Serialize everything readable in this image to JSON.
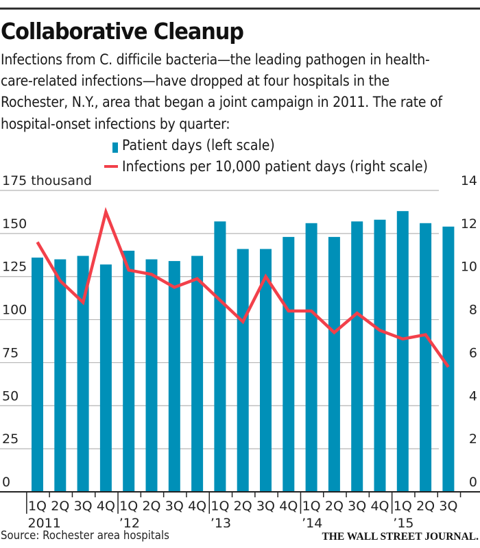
{
  "header": {
    "title": "Collaborative Cleanup",
    "subtitle": "Infections from C. difficile bacteria—the leading pathogen in health-care-related infections—have dropped at four hospitals in the Rochester, N.Y., area that began a joint campaign in 2011. The rate of hospital-onset infections by quarter:"
  },
  "footer": {
    "source": "Source: Rochester area hospitals",
    "brand": "THE WALL STREET JOURNAL."
  },
  "colors": {
    "bars": "#0090b8",
    "line": "#f2404a",
    "grid": "#b5b5b5",
    "axis": "#222222"
  },
  "chart_data": {
    "type": "bar",
    "title": "Collaborative Cleanup",
    "categories": [
      "1Q 2011",
      "2Q 2011",
      "3Q 2011",
      "4Q 2011",
      "1Q '12",
      "2Q '12",
      "3Q '12",
      "4Q '12",
      "1Q '13",
      "2Q '13",
      "3Q '13",
      "4Q '13",
      "1Q '14",
      "2Q '14",
      "3Q '14",
      "4Q '14",
      "1Q '15",
      "2Q '15",
      "3Q '15"
    ],
    "quarter_labels": [
      "1Q",
      "2Q",
      "3Q",
      "4Q",
      "1Q",
      "2Q",
      "3Q",
      "4Q",
      "1Q",
      "2Q",
      "3Q",
      "4Q",
      "1Q",
      "2Q",
      "3Q",
      "4Q",
      "1Q",
      "2Q",
      "3Q"
    ],
    "year_labels": [
      {
        "index": 0,
        "label": "2011"
      },
      {
        "index": 4,
        "label": "’12"
      },
      {
        "index": 8,
        "label": "’13"
      },
      {
        "index": 12,
        "label": "’14"
      },
      {
        "index": 16,
        "label": "’15"
      }
    ],
    "series": [
      {
        "name": "Patient days (left scale)",
        "type": "bar",
        "axis": "left",
        "values": [
          136,
          135,
          137,
          132,
          140,
          135,
          134,
          137,
          157,
          141,
          141,
          148,
          156,
          148,
          157,
          158,
          163,
          156,
          154
        ]
      },
      {
        "name": "Infections per 10,000 patient days (right scale)",
        "type": "line",
        "axis": "right",
        "values": [
          11.6,
          9.8,
          8.8,
          13.0,
          10.3,
          10.1,
          9.5,
          9.9,
          8.9,
          7.9,
          10.0,
          8.4,
          8.4,
          7.4,
          8.3,
          7.5,
          7.1,
          7.3,
          5.8
        ]
      }
    ],
    "left_axis": {
      "label": "175 thousand",
      "ylim": [
        0,
        175
      ],
      "ticks": [
        0,
        25,
        50,
        75,
        100,
        125,
        150,
        175
      ],
      "tick_labels": [
        "0",
        "25",
        "50",
        "75",
        "100",
        "125",
        "150",
        "175 thousand"
      ]
    },
    "right_axis": {
      "ylim": [
        0,
        14
      ],
      "ticks": [
        0,
        2,
        4,
        6,
        8,
        10,
        12,
        14
      ],
      "tick_labels": [
        "0",
        "2",
        "4",
        "6",
        "8",
        "10",
        "12",
        "14"
      ]
    },
    "grid": true,
    "legend_position": "top-center",
    "xlabel": "",
    "ylabel": ""
  }
}
